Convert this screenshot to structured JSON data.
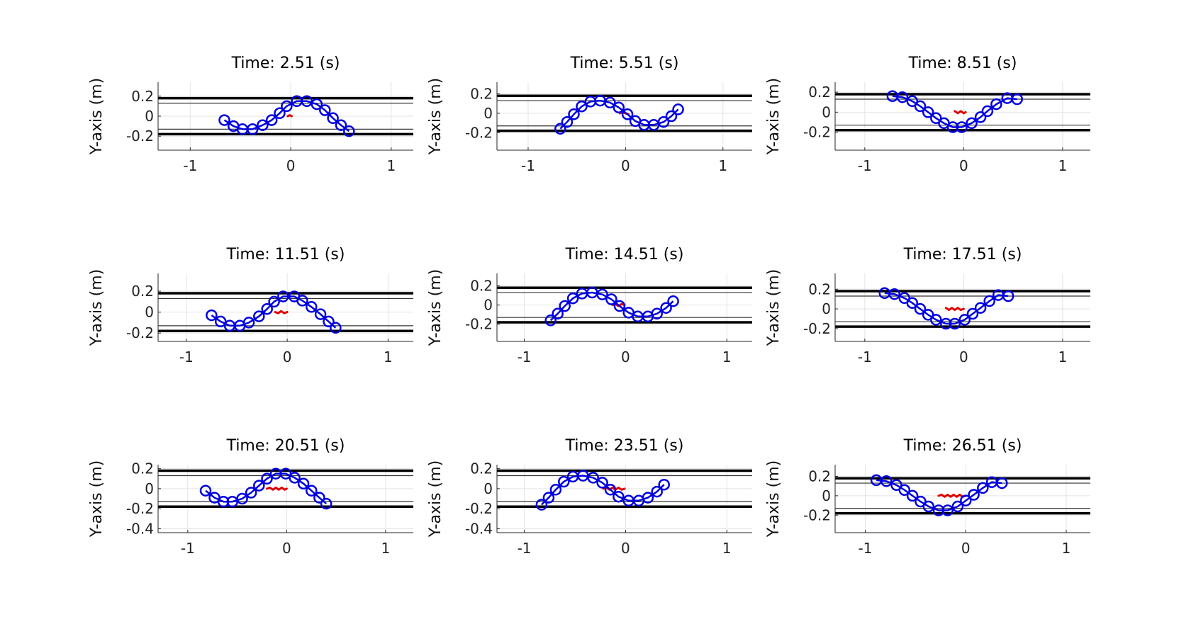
{
  "chart_data": [
    {
      "type": "scatter",
      "title": "Time: 2.51 (s)",
      "ylabel": "Y-axis (m)",
      "xlabel": "",
      "xlim": [
        -1.32,
        1.22
      ],
      "ylim": [
        -0.34,
        0.34
      ],
      "xticks": [
        -1,
        0,
        1
      ],
      "xtick_labels": [
        "-1",
        "0",
        "1"
      ],
      "yticks": [
        -0.2,
        0,
        0.2
      ],
      "ytick_labels": [
        "-0.2",
        "0",
        "0.2"
      ],
      "grid": true,
      "walls": [
        0.18,
        -0.18
      ],
      "inner_lines": [
        0.13,
        -0.13
      ],
      "body": {
        "x": [
          -0.66,
          -0.57,
          -0.48,
          -0.38,
          -0.28,
          -0.19,
          -0.11,
          -0.04,
          0.06,
          0.16,
          0.26,
          0.34,
          0.42,
          0.5,
          0.58
        ],
        "y": [
          -0.04,
          -0.1,
          -0.13,
          -0.13,
          -0.09,
          -0.04,
          0.03,
          0.1,
          0.15,
          0.15,
          0.12,
          0.06,
          -0.02,
          -0.09,
          -0.15
        ]
      },
      "trail": {
        "x": [
          -0.03,
          -0.01,
          0.01
        ],
        "y": [
          0.0,
          0.01,
          0.0
        ]
      }
    },
    {
      "type": "scatter",
      "title": "Time: 5.51 (s)",
      "ylabel": "Y-axis (m)",
      "xlabel": "",
      "xlim": [
        -1.32,
        1.3
      ],
      "ylim": [
        -0.38,
        0.32
      ],
      "xticks": [
        -1,
        0,
        1
      ],
      "xtick_labels": [
        "-1",
        "0",
        "1"
      ],
      "yticks": [
        -0.2,
        0,
        0.2
      ],
      "ytick_labels": [
        "-0.2",
        "0",
        "0.2"
      ],
      "grid": true,
      "walls": [
        0.18,
        -0.18
      ],
      "inner_lines": [
        0.13,
        -0.13
      ],
      "body": {
        "x": [
          -0.67,
          -0.6,
          -0.53,
          -0.45,
          -0.36,
          -0.26,
          -0.16,
          -0.07,
          0.02,
          0.1,
          0.19,
          0.29,
          0.39,
          0.47,
          0.54
        ],
        "y": [
          -0.16,
          -0.09,
          -0.01,
          0.07,
          0.12,
          0.13,
          0.11,
          0.06,
          -0.01,
          -0.08,
          -0.12,
          -0.12,
          -0.09,
          -0.03,
          0.04
        ]
      },
      "trail": {
        "x": [
          -0.06,
          -0.03,
          0.0,
          0.03
        ],
        "y": [
          0.0,
          0.01,
          0.0,
          -0.01
        ]
      }
    },
    {
      "type": "scatter",
      "title": "Time: 8.51 (s)",
      "ylabel": "Y-axis (m)",
      "xlabel": "",
      "xlim": [
        -1.3,
        1.28
      ],
      "ylim": [
        -0.38,
        0.3
      ],
      "xticks": [
        -1,
        0,
        1
      ],
      "xtick_labels": [
        "-1",
        "0",
        "1"
      ],
      "yticks": [
        -0.2,
        0,
        0.2
      ],
      "ytick_labels": [
        "-0.2",
        "0",
        "0.2"
      ],
      "grid": true,
      "walls": [
        0.18,
        -0.18
      ],
      "inner_lines": [
        0.13,
        -0.13
      ],
      "body": {
        "x": [
          -0.72,
          -0.62,
          -0.52,
          -0.44,
          -0.36,
          -0.28,
          -0.2,
          -0.11,
          -0.02,
          0.08,
          0.17,
          0.24,
          0.33,
          0.44,
          0.54
        ],
        "y": [
          0.16,
          0.15,
          0.11,
          0.06,
          0.0,
          -0.06,
          -0.11,
          -0.15,
          -0.15,
          -0.11,
          -0.05,
          0.01,
          0.08,
          0.14,
          0.13
        ]
      },
      "trail": {
        "x": [
          -0.09,
          -0.06,
          -0.03,
          0.0,
          0.02
        ],
        "y": [
          0.01,
          -0.01,
          0.01,
          -0.01,
          0.0
        ]
      }
    },
    {
      "type": "scatter",
      "title": "Time: 11.51 (s)",
      "ylabel": "Y-axis (m)",
      "xlabel": "",
      "xlim": [
        -1.28,
        1.25
      ],
      "ylim": [
        -0.28,
        0.37
      ],
      "xticks": [
        -1,
        0,
        1
      ],
      "xtick_labels": [
        "-1",
        "0",
        "1"
      ],
      "yticks": [
        -0.2,
        0,
        0.2
      ],
      "ytick_labels": [
        "-0.2",
        "0",
        "0.2"
      ],
      "grid": true,
      "walls": [
        0.18,
        -0.18
      ],
      "inner_lines": [
        0.13,
        -0.13
      ],
      "body": {
        "x": [
          -0.75,
          -0.66,
          -0.57,
          -0.47,
          -0.38,
          -0.28,
          -0.2,
          -0.13,
          -0.04,
          0.07,
          0.15,
          0.24,
          0.33,
          0.41,
          0.48
        ],
        "y": [
          -0.03,
          -0.09,
          -0.13,
          -0.13,
          -0.1,
          -0.04,
          0.03,
          0.1,
          0.15,
          0.15,
          0.11,
          0.05,
          -0.02,
          -0.09,
          -0.15
        ]
      },
      "trail": {
        "x": [
          -0.12,
          -0.09,
          -0.06,
          -0.03,
          0.0
        ],
        "y": [
          0.0,
          -0.01,
          0.01,
          -0.01,
          0.0
        ]
      }
    },
    {
      "type": "scatter",
      "title": "Time: 14.51 (s)",
      "ylabel": "Y-axis (m)",
      "xlabel": "",
      "xlim": [
        -1.27,
        1.25
      ],
      "ylim": [
        -0.38,
        0.33
      ],
      "xticks": [
        -1,
        0,
        1
      ],
      "xtick_labels": [
        "-1",
        "0",
        "1"
      ],
      "yticks": [
        -0.2,
        0,
        0.2
      ],
      "ytick_labels": [
        "-0.2",
        "0",
        "0.2"
      ],
      "grid": true,
      "walls": [
        0.18,
        -0.18
      ],
      "inner_lines": [
        0.13,
        -0.13
      ],
      "body": {
        "x": [
          -0.74,
          -0.67,
          -0.6,
          -0.52,
          -0.43,
          -0.33,
          -0.23,
          -0.14,
          -0.06,
          0.03,
          0.12,
          0.22,
          0.31,
          0.4,
          0.47
        ],
        "y": [
          -0.16,
          -0.09,
          -0.01,
          0.07,
          0.12,
          0.13,
          0.11,
          0.06,
          -0.01,
          -0.08,
          -0.12,
          -0.12,
          -0.09,
          -0.03,
          0.04
        ]
      },
      "trail": {
        "x": [
          -0.13,
          -0.1,
          -0.07,
          -0.04,
          -0.01
        ],
        "y": [
          0.0,
          0.01,
          -0.01,
          0.01,
          0.0
        ]
      }
    },
    {
      "type": "scatter",
      "title": "Time: 17.51 (s)",
      "ylabel": "Y-axis (m)",
      "xlabel": "",
      "xlim": [
        -1.3,
        1.28
      ],
      "ylim": [
        -0.33,
        0.36
      ],
      "xticks": [
        -1,
        0,
        1
      ],
      "xtick_labels": [
        "-1",
        "0",
        "1"
      ],
      "yticks": [
        -0.2,
        0,
        0.2
      ],
      "ytick_labels": [
        "-0.2",
        "0",
        "0.2"
      ],
      "grid": true,
      "walls": [
        0.18,
        -0.18
      ],
      "inner_lines": [
        0.13,
        -0.13
      ],
      "body": {
        "x": [
          -0.8,
          -0.7,
          -0.6,
          -0.52,
          -0.44,
          -0.36,
          -0.28,
          -0.18,
          -0.09,
          0.01,
          0.09,
          0.17,
          0.26,
          0.35,
          0.45
        ],
        "y": [
          0.16,
          0.15,
          0.11,
          0.06,
          0.0,
          -0.06,
          -0.11,
          -0.15,
          -0.15,
          -0.11,
          -0.05,
          0.01,
          0.08,
          0.14,
          0.13
        ]
      },
      "trail": {
        "x": [
          -0.18,
          -0.15,
          -0.12,
          -0.09,
          -0.06,
          -0.03,
          0.0
        ],
        "y": [
          0.01,
          -0.01,
          0.01,
          -0.01,
          0.01,
          -0.01,
          0.0
        ]
      }
    },
    {
      "type": "scatter",
      "title": "Time: 20.51 (s)",
      "ylabel": "Y-axis (m)",
      "xlabel": "",
      "xlim": [
        -1.3,
        1.28
      ],
      "ylim": [
        -0.44,
        0.24
      ],
      "xticks": [
        -1,
        0,
        1
      ],
      "xtick_labels": [
        "-1",
        "0",
        "1"
      ],
      "yticks": [
        -0.4,
        -0.2,
        0,
        0.2
      ],
      "ytick_labels": [
        "-0.4",
        "-0.2",
        "0",
        "0.2"
      ],
      "grid": true,
      "walls": [
        0.18,
        -0.18
      ],
      "inner_lines": [
        0.13,
        -0.13
      ],
      "body": {
        "x": [
          -0.82,
          -0.73,
          -0.64,
          -0.55,
          -0.45,
          -0.36,
          -0.28,
          -0.2,
          -0.11,
          -0.01,
          0.08,
          0.17,
          0.25,
          0.33,
          0.4
        ],
        "y": [
          -0.02,
          -0.09,
          -0.13,
          -0.13,
          -0.1,
          -0.04,
          0.03,
          0.1,
          0.15,
          0.15,
          0.11,
          0.05,
          -0.02,
          -0.09,
          -0.15
        ]
      },
      "trail": {
        "x": [
          -0.2,
          -0.17,
          -0.14,
          -0.11,
          -0.08,
          -0.05,
          -0.02,
          0.0
        ],
        "y": [
          0.0,
          0.01,
          -0.01,
          0.01,
          -0.01,
          0.01,
          -0.01,
          0.0
        ]
      }
    },
    {
      "type": "scatter",
      "title": "Time: 23.51 (s)",
      "ylabel": "Y-axis (m)",
      "xlabel": "",
      "xlim": [
        -1.27,
        1.25
      ],
      "ylim": [
        -0.44,
        0.24
      ],
      "xticks": [
        -1,
        0,
        1
      ],
      "xtick_labels": [
        "-1",
        "0",
        "1"
      ],
      "yticks": [
        -0.4,
        -0.2,
        0,
        0.2
      ],
      "ytick_labels": [
        "-0.4",
        "-0.2",
        "0",
        "0.2"
      ],
      "grid": true,
      "walls": [
        0.18,
        -0.18
      ],
      "inner_lines": [
        0.13,
        -0.13
      ],
      "body": {
        "x": [
          -0.83,
          -0.76,
          -0.69,
          -0.61,
          -0.52,
          -0.42,
          -0.32,
          -0.23,
          -0.15,
          -0.07,
          0.03,
          0.13,
          0.22,
          0.31,
          0.38
        ],
        "y": [
          -0.16,
          -0.09,
          -0.01,
          0.07,
          0.12,
          0.13,
          0.11,
          0.06,
          -0.01,
          -0.08,
          -0.12,
          -0.12,
          -0.09,
          -0.03,
          0.04
        ]
      },
      "trail": {
        "x": [
          -0.22,
          -0.19,
          -0.16,
          -0.13,
          -0.1,
          -0.07,
          -0.04,
          -0.01
        ],
        "y": [
          0.0,
          0.01,
          -0.01,
          0.01,
          -0.01,
          0.01,
          -0.01,
          0.0
        ]
      }
    },
    {
      "type": "scatter",
      "title": "Time: 26.51 (s)",
      "ylabel": "Y-axis (m)",
      "xlabel": "",
      "xlim": [
        -1.3,
        1.24
      ],
      "ylim": [
        -0.38,
        0.32
      ],
      "xticks": [
        -1,
        0,
        1
      ],
      "xtick_labels": [
        "-1",
        "0",
        "1"
      ],
      "yticks": [
        -0.2,
        0,
        0.2
      ],
      "ytick_labels": [
        "-0.2",
        "0",
        "0.2"
      ],
      "grid": true,
      "walls": [
        0.18,
        -0.18
      ],
      "inner_lines": [
        0.13,
        -0.13
      ],
      "body": {
        "x": [
          -0.89,
          -0.79,
          -0.69,
          -0.61,
          -0.53,
          -0.45,
          -0.37,
          -0.27,
          -0.18,
          -0.08,
          0.0,
          0.08,
          0.17,
          0.26,
          0.36
        ],
        "y": [
          0.16,
          0.15,
          0.11,
          0.06,
          0.0,
          -0.06,
          -0.11,
          -0.15,
          -0.15,
          -0.11,
          -0.05,
          0.01,
          0.08,
          0.14,
          0.13
        ]
      },
      "trail": {
        "x": [
          -0.27,
          -0.24,
          -0.21,
          -0.18,
          -0.15,
          -0.12,
          -0.09,
          -0.06,
          -0.03,
          0.0
        ],
        "y": [
          0.0,
          0.01,
          -0.01,
          0.01,
          -0.01,
          0.01,
          -0.01,
          0.01,
          -0.01,
          0.0
        ]
      }
    }
  ],
  "colors": {
    "body": "#0000e0",
    "trail": "#e00000",
    "wall": "#000000",
    "inner": "#333333",
    "grid": "#e3e3e3",
    "axis": "#262626"
  }
}
